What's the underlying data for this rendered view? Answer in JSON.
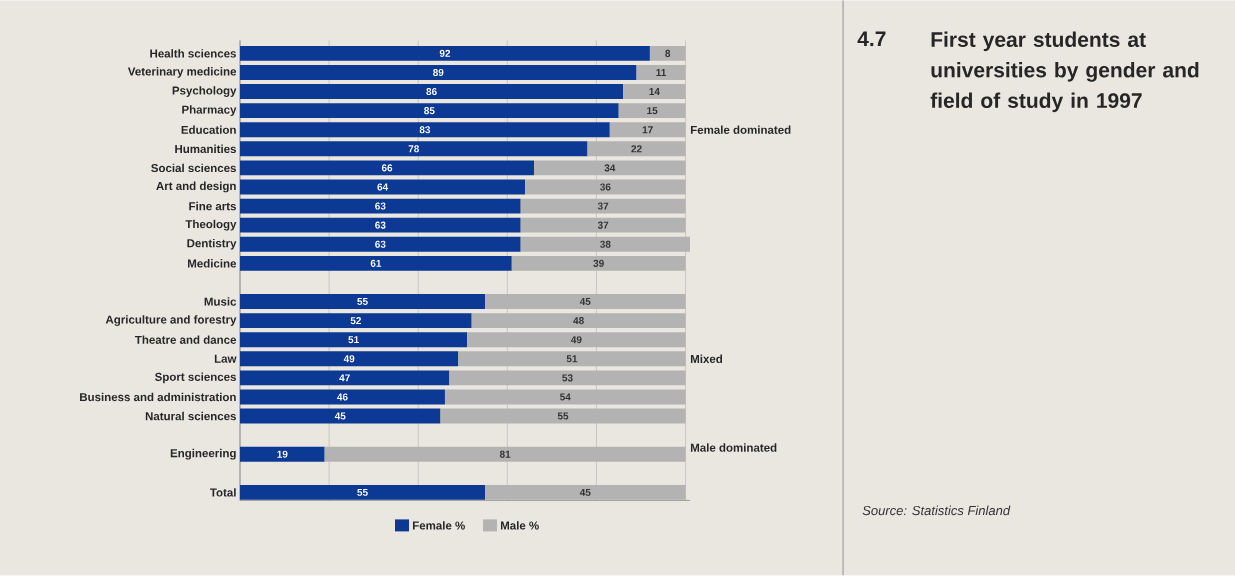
{
  "chart_data": {
    "type": "bar",
    "orientation": "horizontal",
    "stacked": true,
    "title": "First year students at universities by gender and field of study in 1997",
    "categories": [
      "Health sciences",
      "Veterinary medicine",
      "Psychology",
      "Pharmacy",
      "Education",
      "Humanities",
      "Social sciences",
      "Art and design",
      "Fine arts",
      "Theology",
      "Dentistry",
      "Medicine",
      null,
      "Music",
      "Agriculture and forestry",
      "Theatre and dance",
      "Law",
      "Sport sciences",
      "Business and administration",
      "Natural sciences",
      null,
      "Engineering",
      null,
      "Total"
    ],
    "series": [
      {
        "name": "Female %",
        "color": "#0c3994",
        "values": [
          92,
          89,
          86,
          85,
          83,
          78,
          66,
          64,
          63,
          63,
          63,
          61,
          null,
          55,
          52,
          51,
          49,
          47,
          46,
          45,
          null,
          19,
          null,
          55
        ]
      },
      {
        "name": "Male %",
        "color": "#b3b3b3",
        "values": [
          8,
          11,
          14,
          15,
          17,
          22,
          34,
          36,
          37,
          37,
          38,
          39,
          null,
          45,
          48,
          49,
          51,
          53,
          54,
          55,
          null,
          81,
          null,
          45
        ]
      }
    ],
    "tick_labels": "y",
    "grid": "x",
    "legend": "bottom",
    "data_labels": true,
    "annotations": [
      "4.7",
      "Female dominated",
      "Mixed",
      "Male dominated",
      "Source: Statistics Finland"
    ]
  }
}
